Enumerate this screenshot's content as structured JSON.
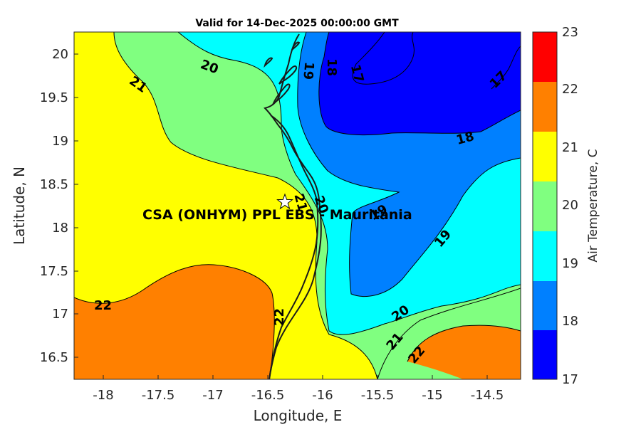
{
  "title": "Valid for 14-Dec-2025 00:00:00 GMT",
  "x_axis": {
    "label": "Longitude, E",
    "ticks": [
      "-18",
      "-17.5",
      "-17",
      "-16.5",
      "-16",
      "-15.5",
      "-15",
      "-14.5"
    ]
  },
  "y_axis": {
    "label": "Latitude, N",
    "ticks": [
      "20",
      "19.5",
      "19",
      "18.5",
      "18",
      "17.5",
      "17",
      "16.5"
    ]
  },
  "colorbar": {
    "label": "Air Temperature, C",
    "ticks": [
      "23",
      "22",
      "21",
      "20",
      "19",
      "18",
      "17"
    ],
    "bands": [
      {
        "range": "22-23",
        "color": "#ff0000"
      },
      {
        "range": "21-22",
        "color": "#ff8000"
      },
      {
        "range": "20-21",
        "color": "#ffff00"
      },
      {
        "range": "19-20",
        "color": "#80ff80"
      },
      {
        "range": "18-19",
        "color": "#00ffff"
      },
      {
        "range": "17-18",
        "color": "#0080ff"
      },
      {
        "range": "below 17",
        "color": "#0000ff"
      }
    ]
  },
  "site": {
    "label": "CSA (ONHYM) PPL EBS  - Mauritania",
    "marker": "star-icon",
    "lon": -16.33,
    "lat": 18.28
  },
  "contour_labels": [
    "20",
    "21",
    "19",
    "18",
    "17",
    "17",
    "18",
    "21",
    "20",
    "19",
    "19",
    "22",
    "22",
    "20",
    "21",
    "22"
  ]
}
